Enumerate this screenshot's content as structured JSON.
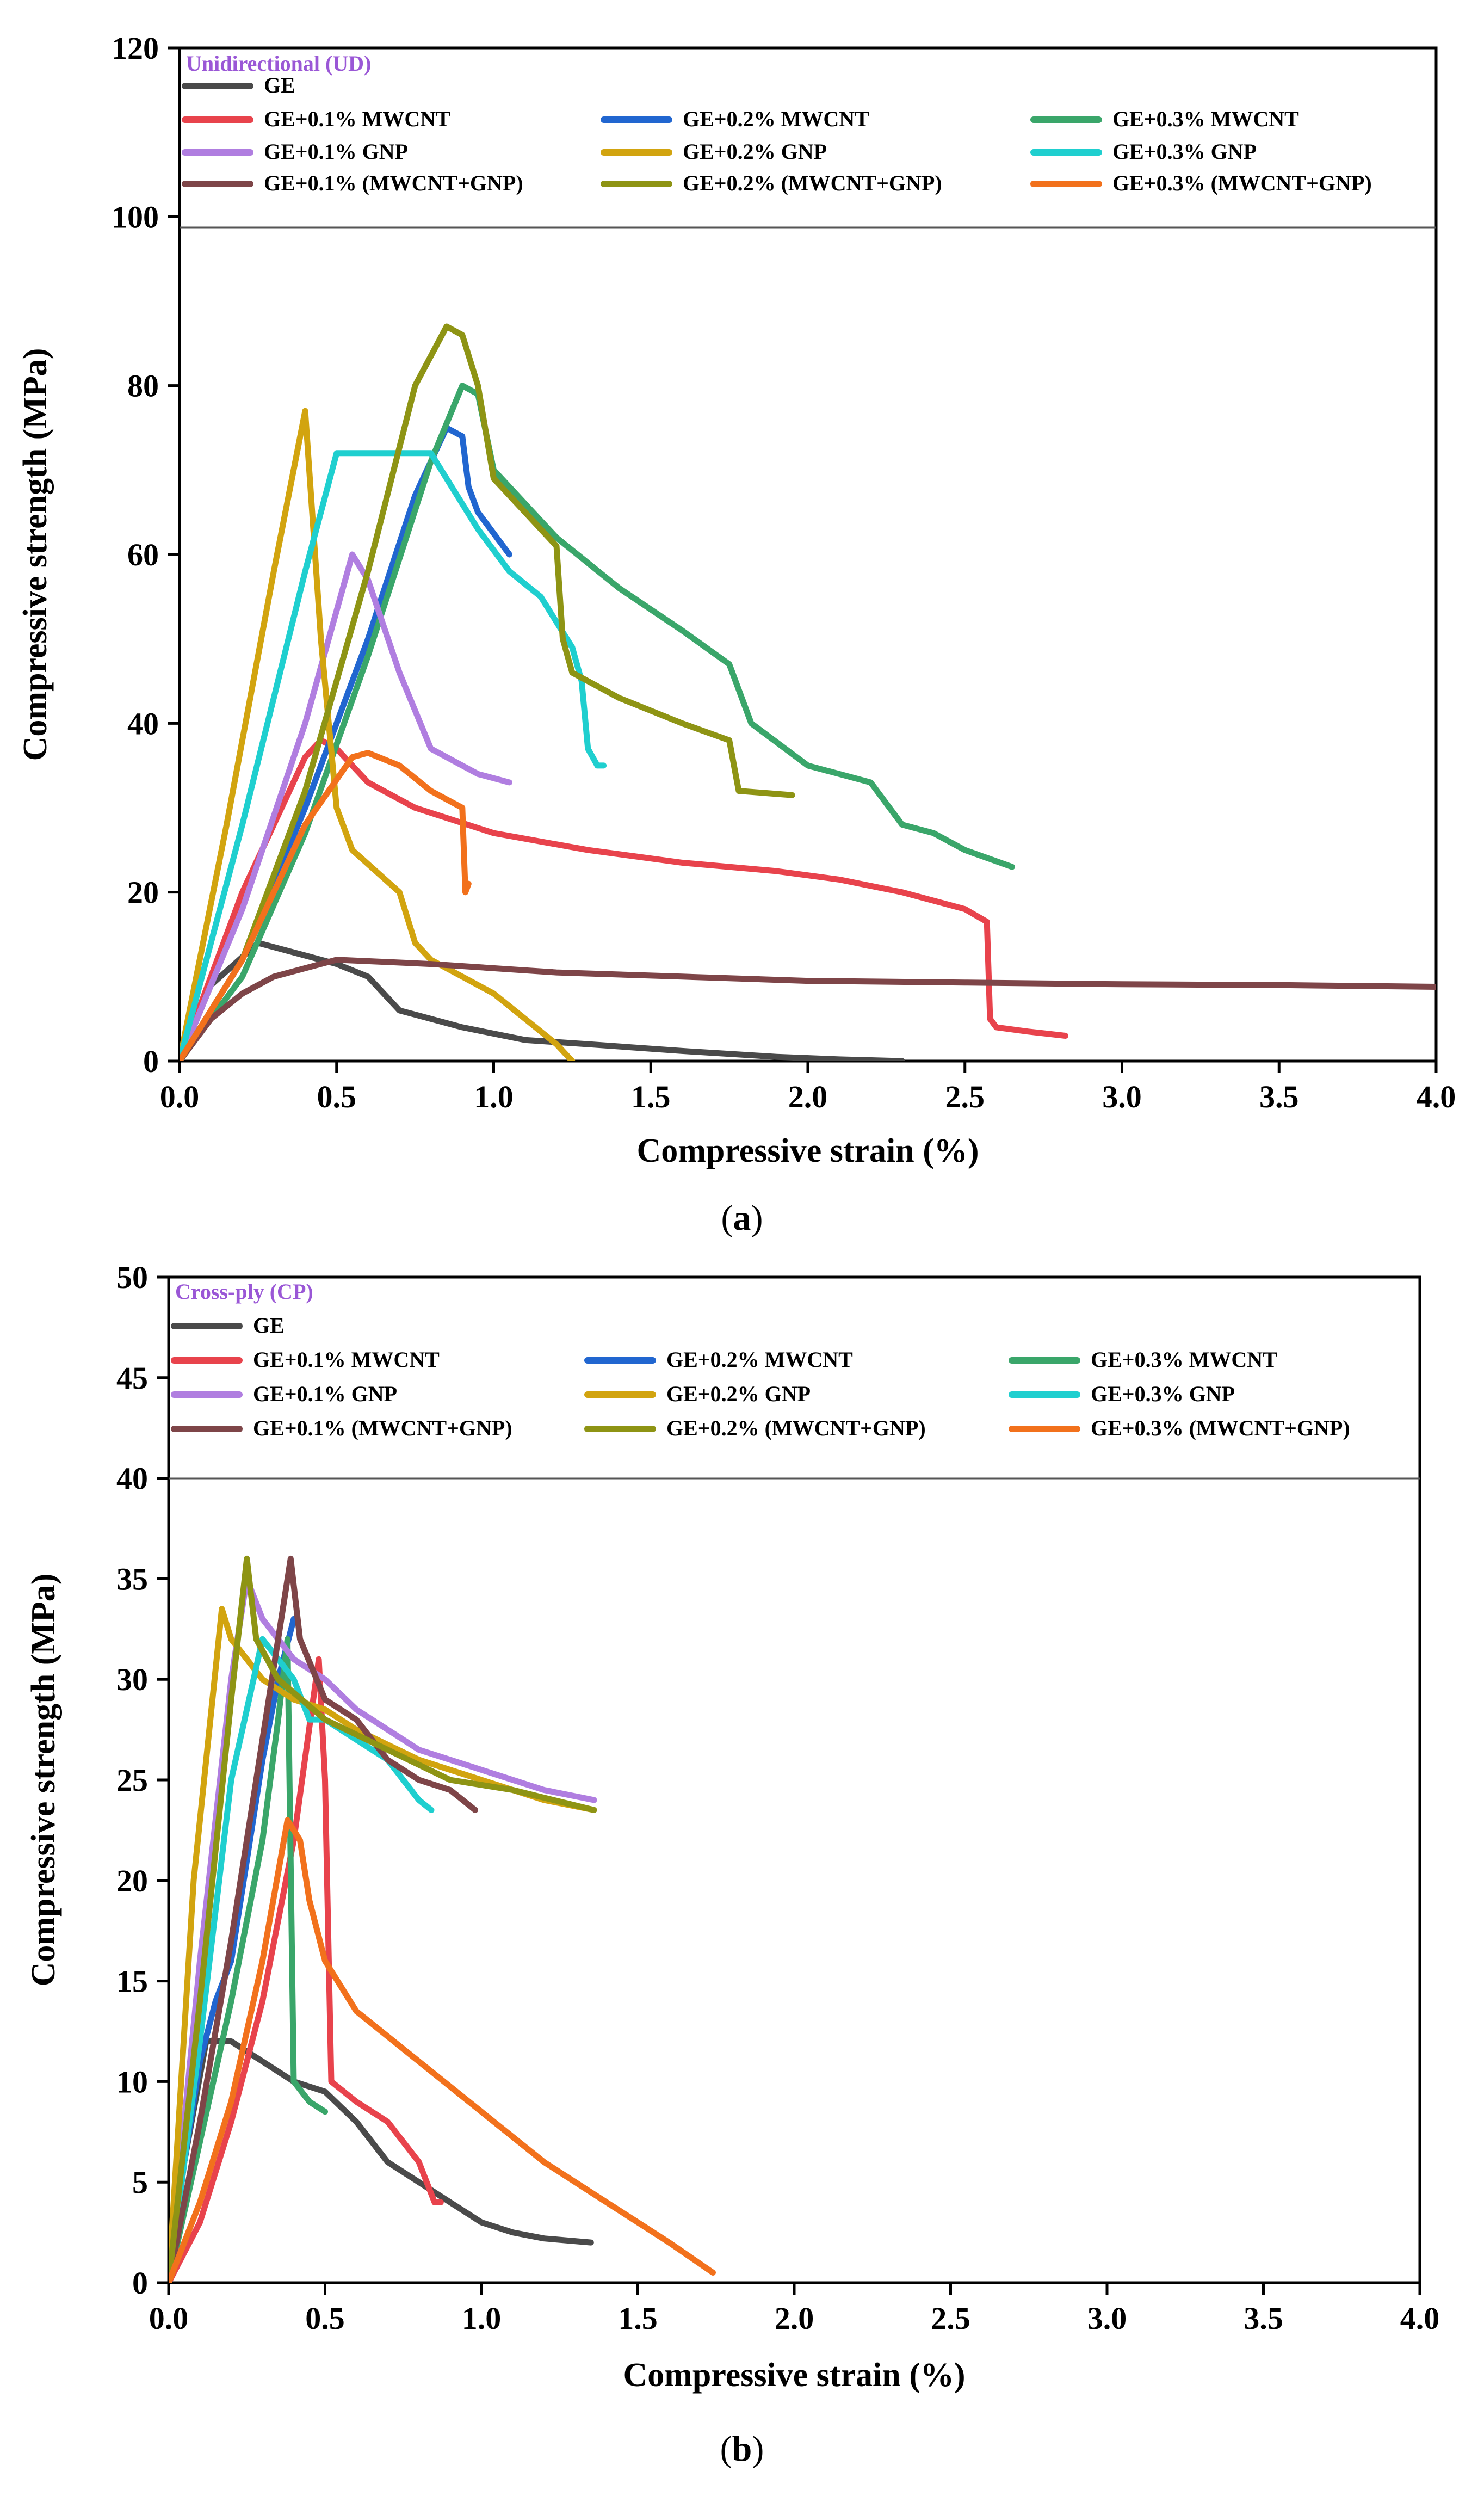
{
  "colors": {
    "GE": "#4a4a4a",
    "GE+0.1% MWCNT": "#e8434c",
    "GE+0.2% MWCNT": "#2166d0",
    "GE+0.3% MWCNT": "#3aa66a",
    "GE+0.1% GNP": "#b07ee0",
    "GE+0.2% GNP": "#d2a40f",
    "GE+0.3% GNP": "#1fcfcf",
    "GE+0.1% (MWCNT+GNP)": "#7e4548",
    "GE+0.2% (MWCNT+GNP)": "#8e9414",
    "GE+0.3% (MWCNT+GNP)": "#f2711c",
    "subtitle": "#9a57d6"
  },
  "chart_data": [
    {
      "type": "line",
      "panel": "a",
      "caption_open": "(",
      "caption_letter": "a",
      "caption_close": ")",
      "subtitle": "Unidirectional (UD)",
      "xlabel": "Compressive strain (%)",
      "ylabel": "Compressive strength (MPa)",
      "xlim": [
        0,
        4
      ],
      "ylim": [
        0,
        120
      ],
      "xticks": [
        0,
        0.5,
        1,
        1.5,
        2,
        2.5,
        3,
        3.5,
        4
      ],
      "yticks": [
        0,
        20,
        40,
        60,
        80,
        100,
        120
      ],
      "xtick_labels": [
        "0.0",
        "0.5",
        "1.0",
        "1.5",
        "2.0",
        "2.5",
        "3.0",
        "3.5",
        "4.0"
      ],
      "ytick_labels": [
        "0",
        "20",
        "40",
        "60",
        "80",
        "100",
        "120"
      ],
      "legend": [
        "GE",
        "GE+0.1% MWCNT",
        "GE+0.2% MWCNT",
        "GE+0.3% MWCNT",
        "GE+0.1% GNP",
        "GE+0.2% GNP",
        "GE+0.3% GNP",
        "GE+0.1% (MWCNT+GNP)",
        "GE+0.2% (MWCNT+GNP)",
        "GE+0.3% (MWCNT+GNP)"
      ],
      "legend_position": "top",
      "series": [
        {
          "name": "GE",
          "x": [
            0,
            0.1,
            0.25,
            0.4,
            0.5,
            0.6,
            0.7,
            0.9,
            1.1,
            1.3,
            1.6,
            1.9,
            2.1,
            2.3
          ],
          "y": [
            0,
            9,
            14,
            12.5,
            11.5,
            10,
            6,
            4,
            2.5,
            2,
            1.2,
            0.5,
            0.2,
            0
          ]
        },
        {
          "name": "GE+0.1% MWCNT",
          "x": [
            0,
            0.2,
            0.4,
            0.45,
            0.5,
            0.6,
            0.75,
            1.0,
            1.3,
            1.6,
            1.9,
            2.1,
            2.3,
            2.5,
            2.57,
            2.58,
            2.6,
            2.7,
            2.82
          ],
          "y": [
            0,
            20,
            36,
            38,
            37,
            33,
            30,
            27,
            25,
            23.5,
            22.5,
            21.5,
            20,
            18,
            16.5,
            5,
            4,
            3.5,
            3
          ]
        },
        {
          "name": "GE+0.2% MWCNT",
          "x": [
            0,
            0.2,
            0.4,
            0.6,
            0.75,
            0.85,
            0.9,
            0.92,
            0.95,
            1.05
          ],
          "y": [
            0,
            12,
            30,
            50,
            67,
            75,
            74,
            68,
            65,
            60
          ]
        },
        {
          "name": "GE+0.3% MWCNT",
          "x": [
            0,
            0.2,
            0.4,
            0.6,
            0.8,
            0.9,
            0.95,
            1.0,
            1.2,
            1.4,
            1.6,
            1.75,
            1.82,
            2.0,
            2.2,
            2.3,
            2.4,
            2.5,
            2.65
          ],
          "y": [
            0,
            10,
            27,
            48,
            71,
            80,
            79,
            70,
            62,
            56,
            51,
            47,
            40,
            35,
            33,
            28,
            27,
            25,
            23
          ]
        },
        {
          "name": "GE+0.1% GNP",
          "x": [
            0,
            0.2,
            0.4,
            0.55,
            0.6,
            0.7,
            0.8,
            0.85,
            0.95,
            1.05
          ],
          "y": [
            0,
            18,
            40,
            60,
            57,
            46,
            37,
            36,
            34,
            33
          ]
        },
        {
          "name": "GE+0.2% GNP",
          "x": [
            0,
            0.15,
            0.3,
            0.4,
            0.45,
            0.5,
            0.55,
            0.7,
            0.75,
            0.8,
            0.9,
            1.0,
            1.1,
            1.2,
            1.25
          ],
          "y": [
            0,
            28,
            58,
            77,
            50,
            30,
            25,
            20,
            14,
            12,
            10,
            8,
            5,
            2,
            0
          ]
        },
        {
          "name": "GE+0.3% GNP",
          "x": [
            0,
            0.2,
            0.4,
            0.5,
            0.6,
            0.8,
            0.85,
            0.95,
            1.05,
            1.15,
            1.25,
            1.28,
            1.3,
            1.33,
            1.35
          ],
          "y": [
            0,
            28,
            58,
            72,
            72,
            72,
            69,
            63,
            58,
            55,
            49,
            45,
            37,
            35,
            35
          ]
        },
        {
          "name": "GE+0.1% (MWCNT+GNP)",
          "x": [
            0,
            0.1,
            0.2,
            0.3,
            0.4,
            0.5,
            0.8,
            1.2,
            1.6,
            2.0,
            2.5,
            3.0,
            3.5,
            4.0
          ],
          "y": [
            0,
            5,
            8,
            10,
            11,
            12,
            11.5,
            10.5,
            10,
            9.5,
            9.3,
            9.1,
            9,
            8.8
          ]
        },
        {
          "name": "GE+0.2% (MWCNT+GNP)",
          "x": [
            0,
            0.2,
            0.4,
            0.6,
            0.75,
            0.85,
            0.9,
            0.95,
            1.0,
            1.2,
            1.22,
            1.25,
            1.4,
            1.6,
            1.75,
            1.78,
            1.95
          ],
          "y": [
            0,
            12,
            32,
            58,
            80,
            87,
            86,
            80,
            69,
            61,
            50,
            46,
            43,
            40,
            38,
            32,
            31.5
          ]
        },
        {
          "name": "GE+0.3% (MWCNT+GNP)",
          "x": [
            0,
            0.2,
            0.4,
            0.55,
            0.6,
            0.7,
            0.8,
            0.9,
            0.91,
            0.92
          ],
          "y": [
            0,
            12,
            28,
            36,
            36.5,
            35,
            32,
            30,
            20,
            21
          ]
        }
      ]
    },
    {
      "type": "line",
      "panel": "b",
      "caption_open": "(",
      "caption_letter": "b",
      "caption_close": ")",
      "subtitle": "Cross-ply (CP)",
      "xlabel": "Compressive strain (%)",
      "ylabel": "Compressive strength (MPa)",
      "xlim": [
        0,
        4
      ],
      "ylim": [
        0,
        50
      ],
      "xticks": [
        0,
        0.5,
        1,
        1.5,
        2,
        2.5,
        3,
        3.5,
        4
      ],
      "yticks": [
        0,
        5,
        10,
        15,
        20,
        25,
        30,
        35,
        40,
        45,
        50
      ],
      "xtick_labels": [
        "0.0",
        "0.5",
        "1.0",
        "1.5",
        "2.0",
        "2.5",
        "3.0",
        "3.5",
        "4.0"
      ],
      "ytick_labels": [
        "0",
        "5",
        "10",
        "15",
        "20",
        "25",
        "30",
        "35",
        "40",
        "45",
        "50"
      ],
      "legend": [
        "GE",
        "GE+0.1% MWCNT",
        "GE+0.2% MWCNT",
        "GE+0.3% MWCNT",
        "GE+0.1% GNP",
        "GE+0.2% GNP",
        "GE+0.3% GNP",
        "GE+0.1% (MWCNT+GNP)",
        "GE+0.2% (MWCNT+GNP)",
        "GE+0.3% (MWCNT+GNP)"
      ],
      "legend_position": "top",
      "series": [
        {
          "name": "GE",
          "x": [
            0,
            0.05,
            0.12,
            0.2,
            0.3,
            0.4,
            0.5,
            0.6,
            0.7,
            0.8,
            0.9,
            1.0,
            1.1,
            1.2,
            1.35
          ],
          "y": [
            0,
            6,
            12,
            12,
            11,
            10,
            9.5,
            8,
            6,
            5,
            4,
            3,
            2.5,
            2.2,
            2
          ]
        },
        {
          "name": "GE+0.1% MWCNT",
          "x": [
            0,
            0.1,
            0.2,
            0.3,
            0.4,
            0.48,
            0.5,
            0.52,
            0.6,
            0.7,
            0.8,
            0.85,
            0.87
          ],
          "y": [
            0,
            3,
            8,
            14,
            22,
            31,
            25,
            10,
            9,
            8,
            6,
            4,
            4
          ]
        },
        {
          "name": "GE+0.2% MWCNT",
          "x": [
            0,
            0.05,
            0.1,
            0.15,
            0.2,
            0.25,
            0.3,
            0.35,
            0.4
          ],
          "y": [
            0,
            6,
            11,
            14,
            16,
            21,
            26,
            30,
            33
          ]
        },
        {
          "name": "GE+0.3% MWCNT",
          "x": [
            0,
            0.1,
            0.2,
            0.3,
            0.35,
            0.38,
            0.4,
            0.45,
            0.5
          ],
          "y": [
            0,
            7,
            14,
            22,
            28,
            32,
            10,
            9,
            8.5
          ]
        },
        {
          "name": "GE+0.1% GNP",
          "x": [
            0,
            0.1,
            0.2,
            0.25,
            0.3,
            0.4,
            0.5,
            0.6,
            0.7,
            0.8,
            0.9,
            1.0,
            1.2,
            1.36
          ],
          "y": [
            0,
            16,
            30,
            35,
            33,
            31,
            30,
            28.5,
            27.5,
            26.5,
            26,
            25.5,
            24.5,
            24
          ]
        },
        {
          "name": "GE+0.2% GNP",
          "x": [
            0,
            0.08,
            0.17,
            0.2,
            0.25,
            0.3,
            0.4,
            0.5,
            0.6,
            0.8,
            1.0,
            1.2,
            1.36
          ],
          "y": [
            0,
            20,
            33.5,
            32,
            31,
            30,
            29,
            28.5,
            27.5,
            26,
            25,
            24,
            23.5
          ]
        },
        {
          "name": "GE+0.3% GNP",
          "x": [
            0,
            0.1,
            0.2,
            0.3,
            0.4,
            0.45,
            0.5,
            0.6,
            0.7,
            0.8,
            0.84
          ],
          "y": [
            0,
            12,
            25,
            32,
            30,
            28,
            28,
            27,
            26,
            24,
            23.5
          ]
        },
        {
          "name": "GE+0.1% (MWCNT+GNP)",
          "x": [
            0,
            0.1,
            0.2,
            0.3,
            0.35,
            0.39,
            0.42,
            0.5,
            0.6,
            0.7,
            0.8,
            0.9,
            0.98
          ],
          "y": [
            0,
            8,
            17,
            27,
            32,
            36,
            32,
            29,
            28,
            26,
            25,
            24.5,
            23.5
          ]
        },
        {
          "name": "GE+0.2% (MWCNT+GNP)",
          "x": [
            0,
            0.1,
            0.2,
            0.25,
            0.28,
            0.35,
            0.5,
            0.7,
            0.9,
            1.1,
            1.36
          ],
          "y": [
            0,
            14,
            29,
            36,
            32,
            30,
            28,
            26.5,
            25,
            24.5,
            23.5
          ]
        },
        {
          "name": "GE+0.3% (MWCNT+GNP)",
          "x": [
            0,
            0.1,
            0.2,
            0.3,
            0.38,
            0.42,
            0.45,
            0.5,
            0.6,
            0.8,
            1.0,
            1.2,
            1.4,
            1.6,
            1.74
          ],
          "y": [
            0,
            4,
            9,
            16,
            23,
            22,
            19,
            16,
            13.5,
            11,
            8.5,
            6,
            4,
            2,
            0.5
          ]
        }
      ]
    }
  ]
}
